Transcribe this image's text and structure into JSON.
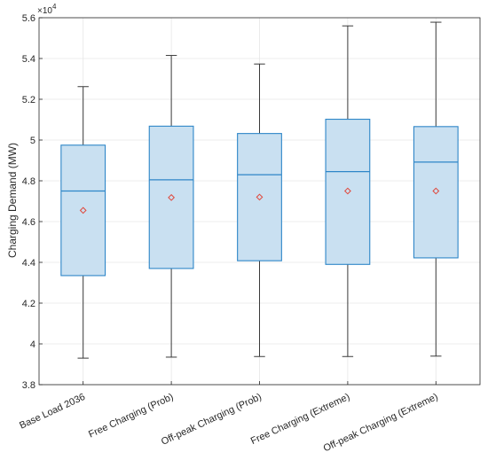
{
  "chart_data": {
    "type": "boxplot",
    "title": "",
    "xlabel": "",
    "ylabel": "Charging Demand (MW)",
    "y_exponent_label": "×10",
    "y_exponent_power": "4",
    "ylim": [
      3.8,
      5.6
    ],
    "yticks": [
      3.8,
      4,
      4.2,
      4.4,
      4.6,
      4.8,
      5,
      5.2,
      5.4,
      5.6
    ],
    "ytick_labels": [
      "3.8",
      "4",
      "4.2",
      "4.4",
      "4.6",
      "4.8",
      "5",
      "5.2",
      "5.4",
      "5.6"
    ],
    "grid": true,
    "categories": [
      "Base Load 2036",
      "Free Charging (Prob)",
      "Off-peak Charging (Prob)",
      "Free Charging (Extreme)",
      "Off-peak Charging (Extreme)"
    ],
    "boxes": [
      {
        "whisker_low": 3.93,
        "q1": 4.335,
        "median": 4.75,
        "q3": 4.975,
        "whisker_high": 5.262,
        "mean": 4.655
      },
      {
        "whisker_low": 3.935,
        "q1": 4.37,
        "median": 4.805,
        "q3": 5.068,
        "whisker_high": 5.415,
        "mean": 4.718
      },
      {
        "whisker_low": 3.938,
        "q1": 4.408,
        "median": 4.83,
        "q3": 5.032,
        "whisker_high": 5.373,
        "mean": 4.72
      },
      {
        "whisker_low": 3.938,
        "q1": 4.39,
        "median": 4.845,
        "q3": 5.102,
        "whisker_high": 5.56,
        "mean": 4.75
      },
      {
        "whisker_low": 3.94,
        "q1": 4.422,
        "median": 4.892,
        "q3": 5.066,
        "whisker_high": 5.578,
        "mean": 4.75
      }
    ],
    "colors": {
      "box_fill": "#c9e0f1",
      "box_edge": "#2e86c8",
      "whisker": "#3a3a3a",
      "mean_marker": "#e0463a",
      "grid": "#e6e6e6",
      "axis": "#262626"
    }
  }
}
